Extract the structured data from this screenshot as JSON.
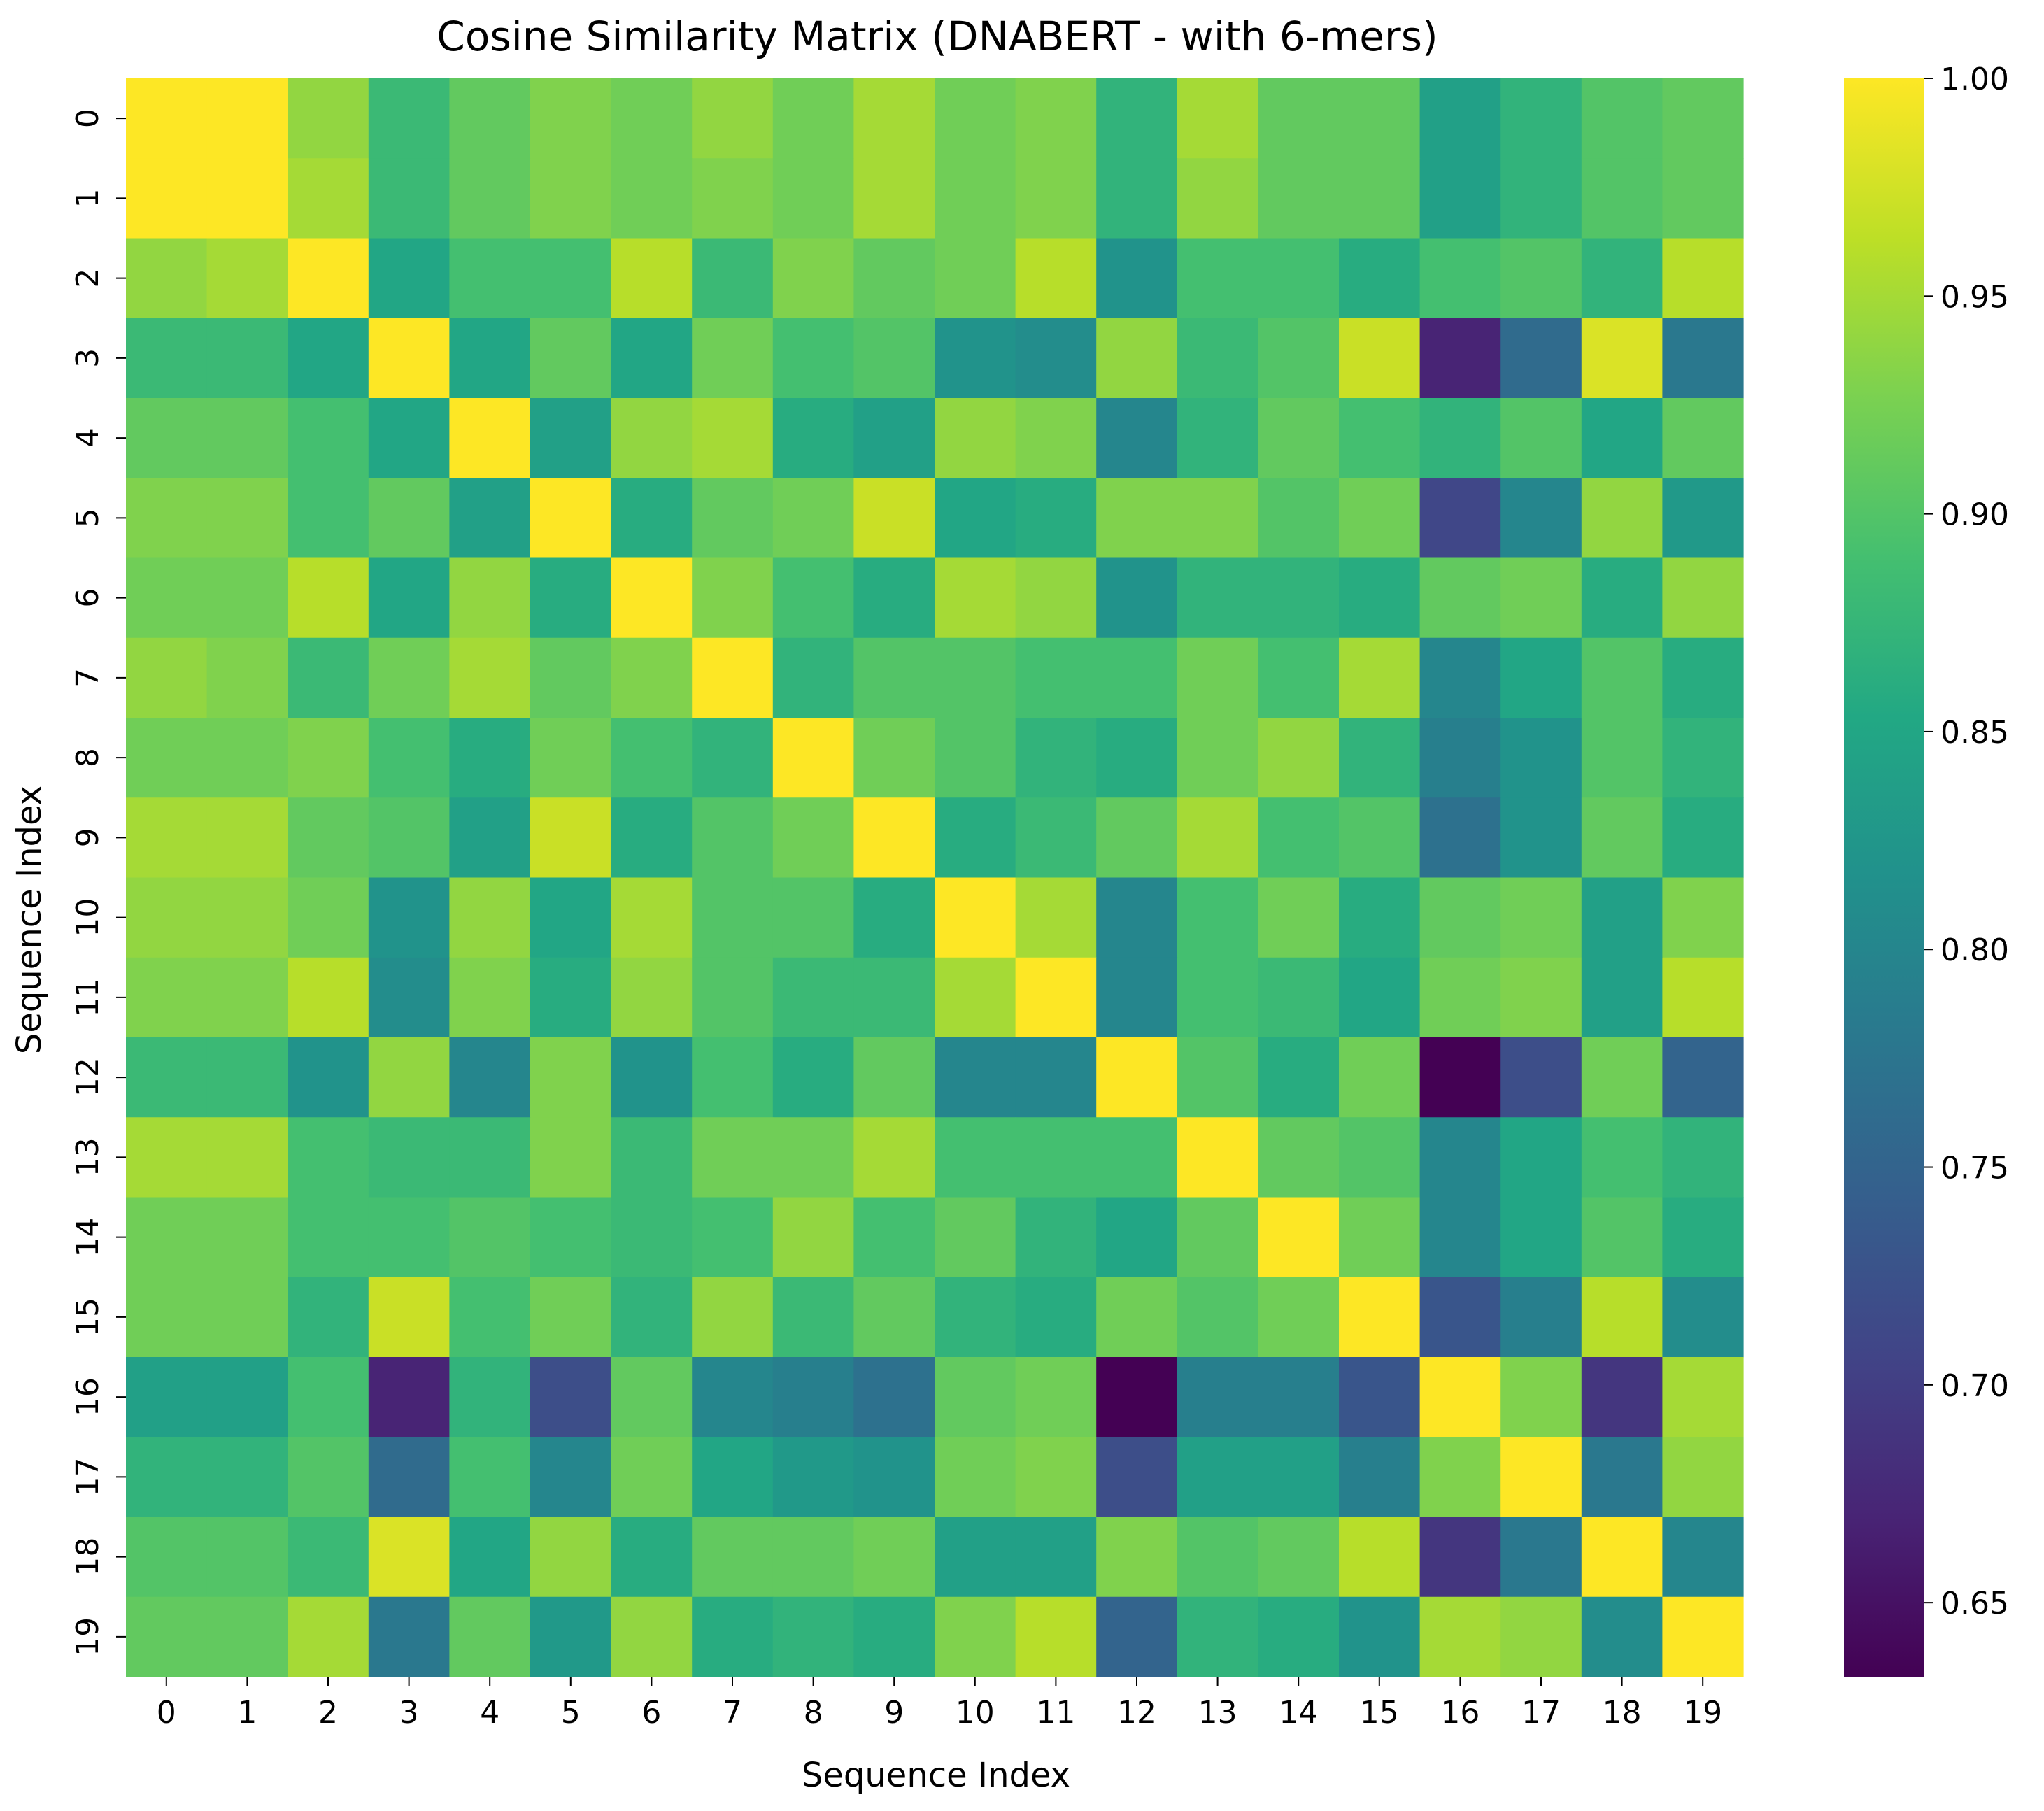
{
  "chart_data": {
    "type": "heatmap",
    "title": "Cosine Similarity Matrix (DNABERT - with 6-mers)",
    "xlabel": "Sequence Index",
    "ylabel": "Sequence Index",
    "row_labels": [
      "0",
      "1",
      "2",
      "3",
      "4",
      "5",
      "6",
      "7",
      "8",
      "9",
      "10",
      "11",
      "12",
      "13",
      "14",
      "15",
      "16",
      "17",
      "18",
      "19"
    ],
    "col_labels": [
      "0",
      "1",
      "2",
      "3",
      "4",
      "5",
      "6",
      "7",
      "8",
      "9",
      "10",
      "11",
      "12",
      "13",
      "14",
      "15",
      "16",
      "17",
      "18",
      "19"
    ],
    "colormap": "viridis",
    "vmin": 0.633,
    "vmax": 1.0,
    "colorbar_ticks": [
      "0.65",
      "0.70",
      "0.75",
      "0.80",
      "0.85",
      "0.90",
      "0.95",
      "1.00"
    ],
    "values": [
      [
        1.0,
        1.0,
        0.94,
        0.88,
        0.91,
        0.93,
        0.92,
        0.94,
        0.92,
        0.95,
        0.92,
        0.93,
        0.87,
        0.95,
        0.91,
        0.91,
        0.84,
        0.87,
        0.9,
        0.91
      ],
      [
        1.0,
        1.0,
        0.95,
        0.88,
        0.91,
        0.93,
        0.92,
        0.93,
        0.92,
        0.95,
        0.92,
        0.93,
        0.87,
        0.94,
        0.91,
        0.91,
        0.84,
        0.87,
        0.9,
        0.91
      ],
      [
        0.94,
        0.95,
        1.0,
        0.85,
        0.89,
        0.89,
        0.96,
        0.88,
        0.93,
        0.91,
        0.92,
        0.96,
        0.82,
        0.89,
        0.89,
        0.86,
        0.89,
        0.9,
        0.87,
        0.96
      ],
      [
        0.88,
        0.88,
        0.85,
        1.0,
        0.85,
        0.91,
        0.85,
        0.92,
        0.89,
        0.9,
        0.82,
        0.81,
        0.94,
        0.88,
        0.9,
        0.97,
        0.67,
        0.76,
        0.98,
        0.78
      ],
      [
        0.91,
        0.91,
        0.89,
        0.85,
        1.0,
        0.84,
        0.94,
        0.95,
        0.86,
        0.84,
        0.94,
        0.93,
        0.8,
        0.87,
        0.91,
        0.89,
        0.87,
        0.9,
        0.85,
        0.91
      ],
      [
        0.93,
        0.93,
        0.89,
        0.91,
        0.84,
        1.0,
        0.86,
        0.91,
        0.92,
        0.97,
        0.85,
        0.86,
        0.93,
        0.93,
        0.9,
        0.92,
        0.71,
        0.8,
        0.94,
        0.83
      ],
      [
        0.92,
        0.92,
        0.96,
        0.85,
        0.94,
        0.86,
        1.0,
        0.93,
        0.89,
        0.86,
        0.95,
        0.94,
        0.82,
        0.87,
        0.87,
        0.86,
        0.91,
        0.92,
        0.86,
        0.94
      ],
      [
        0.94,
        0.93,
        0.88,
        0.92,
        0.95,
        0.91,
        0.93,
        1.0,
        0.87,
        0.9,
        0.9,
        0.89,
        0.89,
        0.92,
        0.89,
        0.95,
        0.8,
        0.85,
        0.9,
        0.86
      ],
      [
        0.92,
        0.92,
        0.93,
        0.89,
        0.86,
        0.92,
        0.89,
        0.87,
        1.0,
        0.92,
        0.9,
        0.87,
        0.86,
        0.92,
        0.94,
        0.87,
        0.79,
        0.82,
        0.9,
        0.87
      ],
      [
        0.95,
        0.95,
        0.91,
        0.9,
        0.84,
        0.97,
        0.86,
        0.9,
        0.92,
        1.0,
        0.86,
        0.88,
        0.91,
        0.95,
        0.89,
        0.9,
        0.77,
        0.82,
        0.91,
        0.86
      ],
      [
        0.94,
        0.94,
        0.92,
        0.82,
        0.94,
        0.85,
        0.95,
        0.9,
        0.9,
        0.86,
        1.0,
        0.95,
        0.8,
        0.89,
        0.92,
        0.86,
        0.91,
        0.92,
        0.84,
        0.93
      ],
      [
        0.93,
        0.93,
        0.96,
        0.81,
        0.93,
        0.86,
        0.94,
        0.9,
        0.88,
        0.88,
        0.95,
        1.0,
        0.8,
        0.89,
        0.88,
        0.85,
        0.92,
        0.93,
        0.84,
        0.96
      ],
      [
        0.88,
        0.88,
        0.82,
        0.94,
        0.8,
        0.93,
        0.82,
        0.89,
        0.86,
        0.91,
        0.8,
        0.8,
        1.0,
        0.9,
        0.86,
        0.92,
        0.633,
        0.72,
        0.92,
        0.75
      ],
      [
        0.95,
        0.95,
        0.89,
        0.88,
        0.88,
        0.93,
        0.88,
        0.92,
        0.92,
        0.95,
        0.89,
        0.89,
        0.89,
        1.0,
        0.91,
        0.9,
        0.8,
        0.85,
        0.89,
        0.87
      ],
      [
        0.92,
        0.92,
        0.89,
        0.89,
        0.9,
        0.89,
        0.88,
        0.89,
        0.94,
        0.89,
        0.91,
        0.87,
        0.85,
        0.91,
        1.0,
        0.92,
        0.8,
        0.85,
        0.9,
        0.86
      ],
      [
        0.92,
        0.92,
        0.87,
        0.97,
        0.89,
        0.92,
        0.87,
        0.94,
        0.88,
        0.91,
        0.87,
        0.86,
        0.92,
        0.9,
        0.92,
        1.0,
        0.73,
        0.79,
        0.96,
        0.81
      ],
      [
        0.84,
        0.84,
        0.89,
        0.67,
        0.87,
        0.72,
        0.91,
        0.8,
        0.79,
        0.77,
        0.91,
        0.92,
        0.633,
        0.79,
        0.79,
        0.73,
        1.0,
        0.93,
        0.69,
        0.95
      ],
      [
        0.87,
        0.87,
        0.9,
        0.76,
        0.89,
        0.8,
        0.92,
        0.85,
        0.83,
        0.82,
        0.92,
        0.93,
        0.72,
        0.84,
        0.84,
        0.79,
        0.93,
        1.0,
        0.78,
        0.94
      ],
      [
        0.9,
        0.9,
        0.88,
        0.98,
        0.85,
        0.94,
        0.86,
        0.91,
        0.91,
        0.92,
        0.84,
        0.84,
        0.93,
        0.9,
        0.91,
        0.96,
        0.69,
        0.78,
        1.0,
        0.8
      ],
      [
        0.91,
        0.91,
        0.95,
        0.78,
        0.91,
        0.83,
        0.94,
        0.86,
        0.87,
        0.86,
        0.93,
        0.96,
        0.75,
        0.87,
        0.86,
        0.82,
        0.95,
        0.94,
        0.81,
        1.0
      ]
    ]
  }
}
